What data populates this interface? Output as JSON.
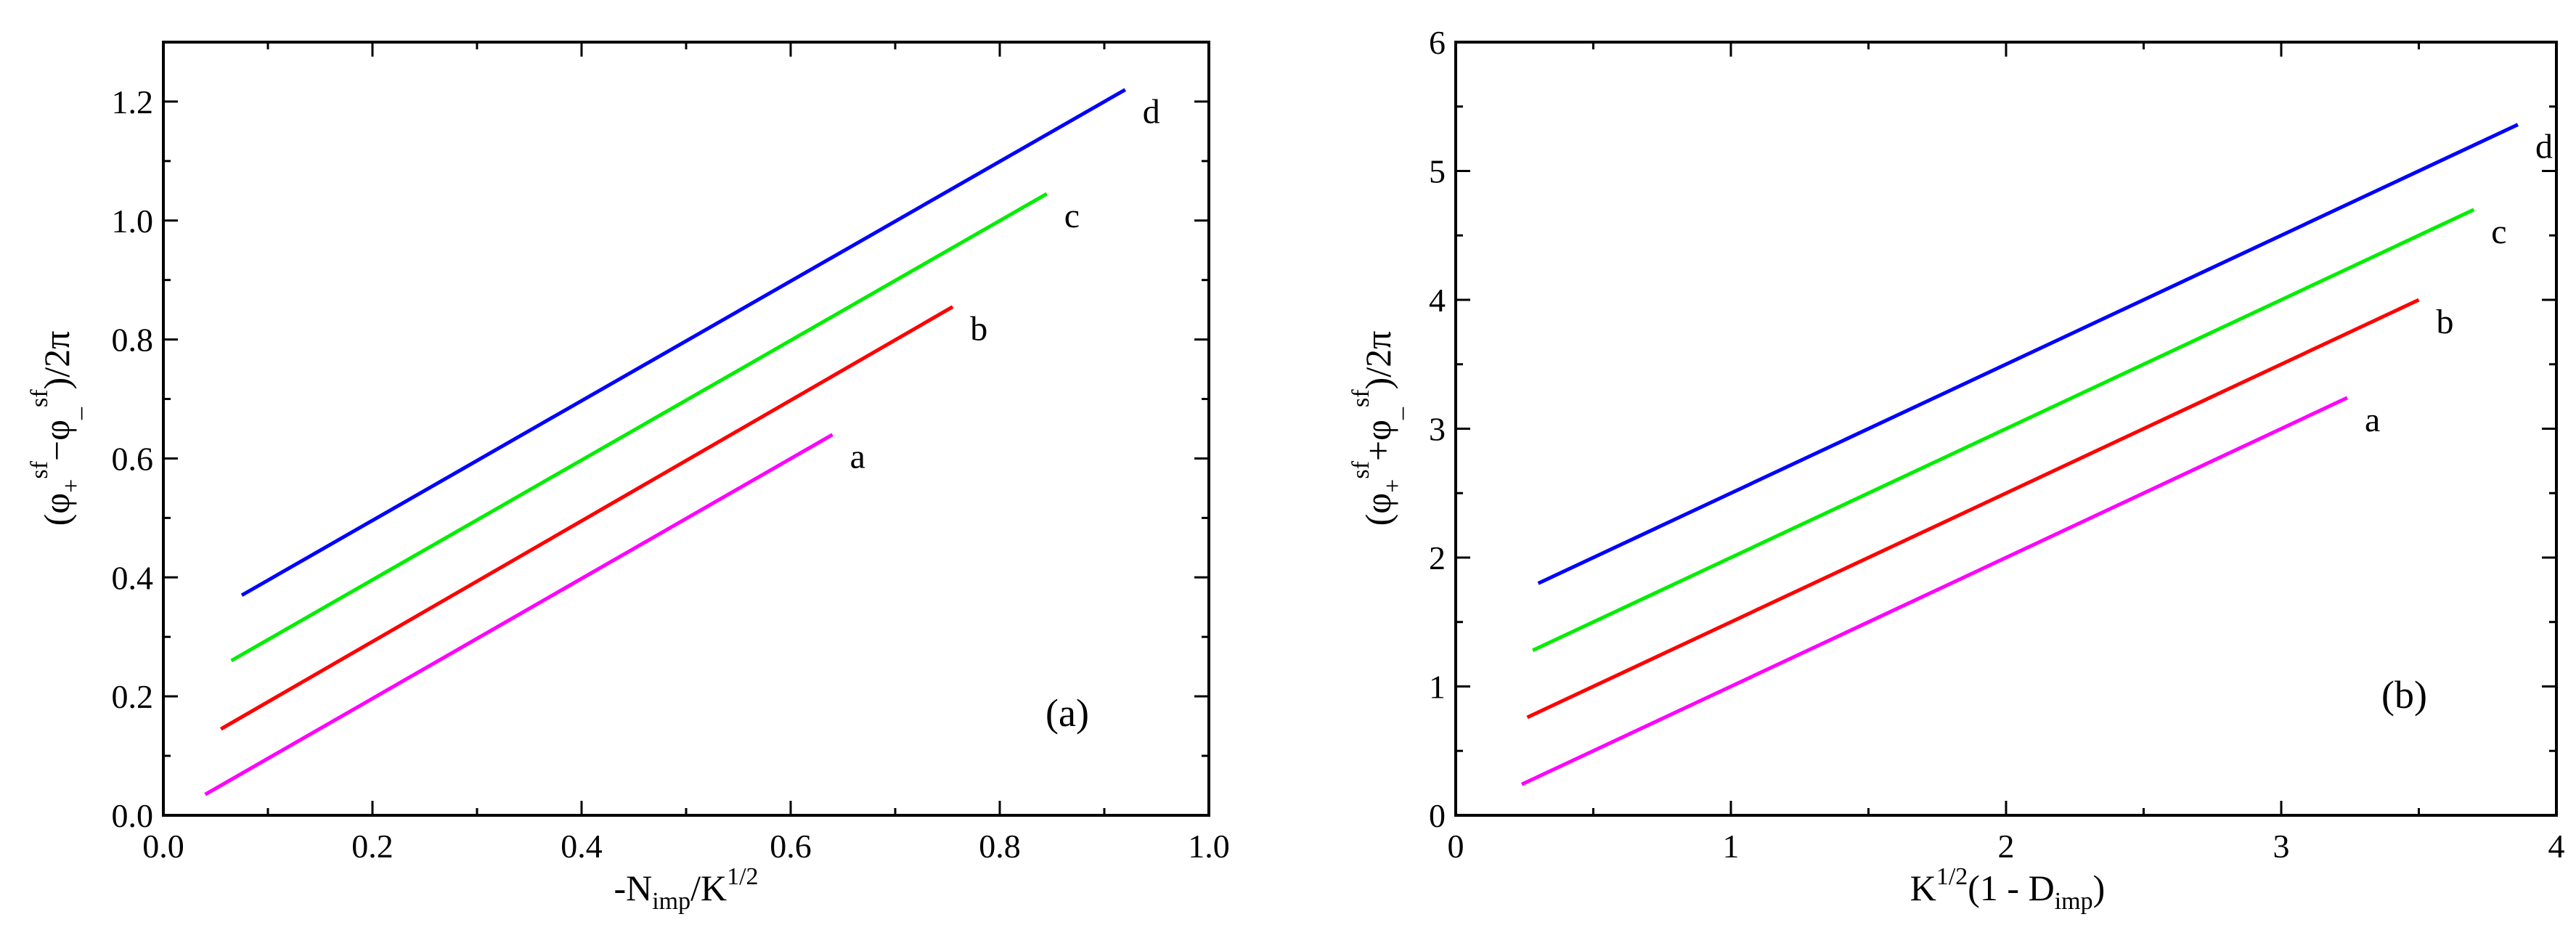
{
  "chart_data": [
    {
      "type": "line",
      "panel_label": "(a)",
      "xlabel": {
        "main": "-N",
        "sub": "imp",
        "rest": "/K",
        "sup": "1/2"
      },
      "ylabel": {
        "open": "(φ",
        "sub1": "+",
        "sup1": "sf",
        "mid": "−φ",
        "sub2": "_",
        "sup2": "sf",
        "close": ")/2π"
      },
      "xlim": [
        0.0,
        1.0
      ],
      "ylim": [
        0.0,
        1.3
      ],
      "xticks": [
        0.0,
        0.2,
        0.4,
        0.6,
        0.8,
        1.0
      ],
      "xtick_labels": [
        "0.0",
        "0.2",
        "0.4",
        "0.6",
        "0.8",
        "1.0"
      ],
      "yticks": [
        0.0,
        0.2,
        0.4,
        0.6,
        0.8,
        1.0,
        1.2
      ],
      "ytick_labels": [
        "0.0",
        "0.2",
        "0.4",
        "0.6",
        "0.8",
        "1.0",
        "1.2"
      ],
      "series": [
        {
          "name": "a",
          "color": "#ff00ff",
          "x": [
            0.04,
            0.64
          ],
          "y": [
            0.035,
            0.64
          ]
        },
        {
          "name": "b",
          "color": "#ff0000",
          "x": [
            0.055,
            0.755
          ],
          "y": [
            0.145,
            0.855
          ]
        },
        {
          "name": "c",
          "color": "#00ee00",
          "x": [
            0.065,
            0.845
          ],
          "y": [
            0.26,
            1.045
          ]
        },
        {
          "name": "d",
          "color": "#0000ff",
          "x": [
            0.075,
            0.92
          ],
          "y": [
            0.37,
            1.22
          ]
        }
      ]
    },
    {
      "type": "line",
      "panel_label": "(b)",
      "xlabel": {
        "pre": "K",
        "sup": "1/2",
        "mid": "(1 - D",
        "sub": "imp",
        "close": ")"
      },
      "ylabel": {
        "open": "(φ",
        "sub1": "+",
        "sup1": "sf",
        "mid": "+φ",
        "sub2": "_",
        "sup2": "sf",
        "close": ")/2π"
      },
      "xlim": [
        0,
        4
      ],
      "ylim": [
        0,
        6
      ],
      "xticks": [
        0,
        1,
        2,
        3,
        4
      ],
      "xtick_labels": [
        "0",
        "1",
        "2",
        "3",
        "4"
      ],
      "yticks": [
        0,
        1,
        2,
        3,
        4,
        5,
        6
      ],
      "ytick_labels": [
        "0",
        "1",
        "2",
        "3",
        "4",
        "5",
        "6"
      ],
      "series": [
        {
          "name": "a",
          "color": "#ff00ff",
          "x": [
            0.24,
            3.24
          ],
          "y": [
            0.24,
            3.24
          ]
        },
        {
          "name": "b",
          "color": "#ff0000",
          "x": [
            0.26,
            3.5
          ],
          "y": [
            0.76,
            4.0
          ]
        },
        {
          "name": "c",
          "color": "#00ee00",
          "x": [
            0.28,
            3.7
          ],
          "y": [
            1.28,
            4.7
          ]
        },
        {
          "name": "d",
          "color": "#0000ff",
          "x": [
            0.3,
            3.86
          ],
          "y": [
            1.8,
            5.36
          ]
        }
      ]
    }
  ]
}
